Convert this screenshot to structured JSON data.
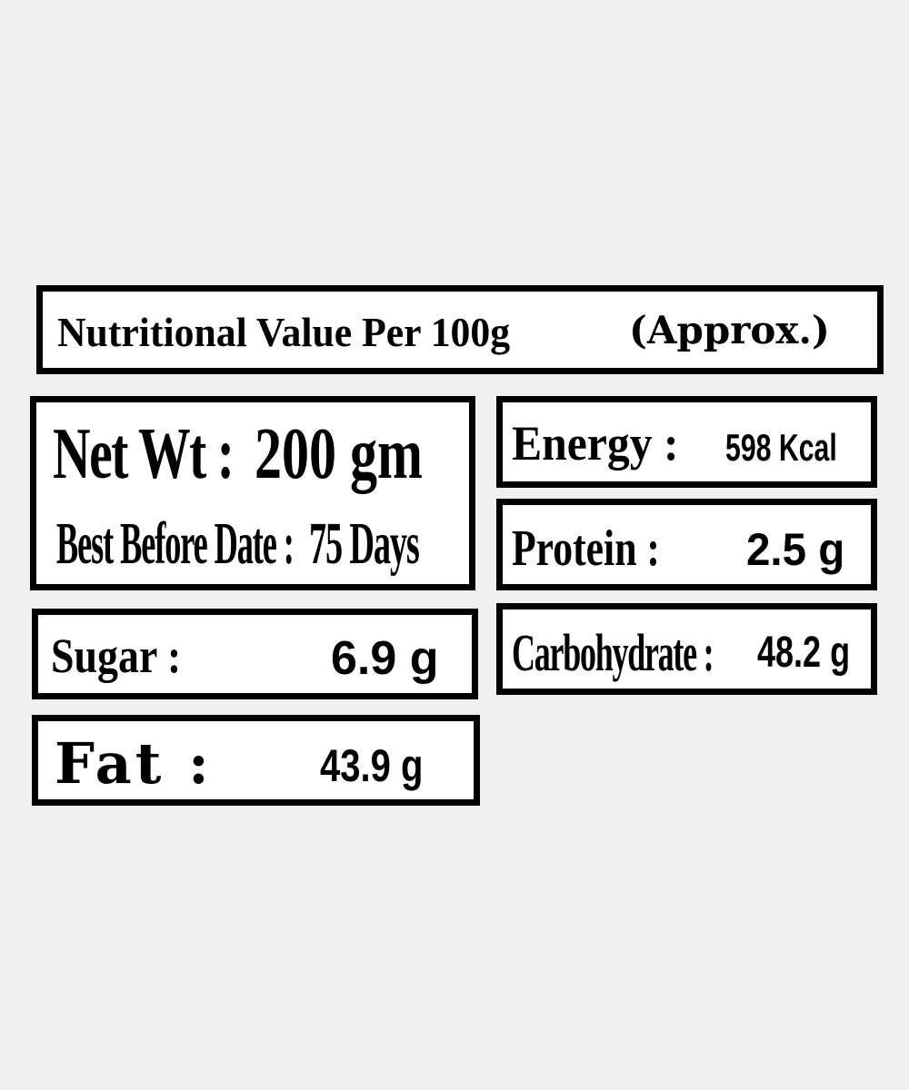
{
  "title": "Nutritional Value Per 100g",
  "title_suffix": "(Approx.)",
  "net_weight": {
    "label": "Net Wt :",
    "value": "200 gm"
  },
  "best_before": {
    "label": "Best Before Date :",
    "value": "75 Days"
  },
  "energy": {
    "label": "Energy :",
    "value": "598 Kcal"
  },
  "protein": {
    "label": "Protein :",
    "value": "2.5 g"
  },
  "sugar": {
    "label": "Sugar :",
    "value": "6.9 g"
  },
  "carbohydrate": {
    "label": "Carbohydrate :",
    "value": "48.2 g"
  },
  "fat": {
    "label": "Fat :",
    "value": "43.9 g"
  },
  "colors": {
    "background": "#f0f0f0",
    "box": "#ffffff",
    "border": "#000000"
  }
}
